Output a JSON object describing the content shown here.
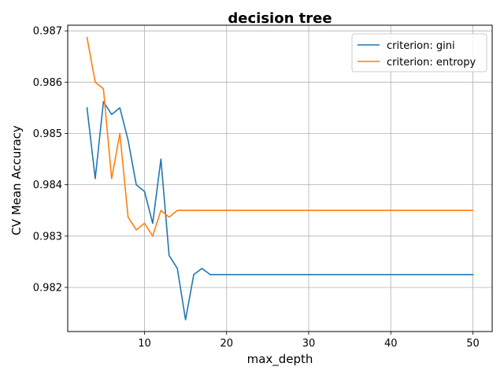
{
  "chart_data": {
    "type": "line",
    "title": "decision tree",
    "xlabel": "max_depth",
    "ylabel": "CV Mean Accuracy",
    "xlim": [
      0.65,
      52.35
    ],
    "ylim": [
      0.98114,
      0.98711
    ],
    "xticks": [
      10,
      20,
      30,
      40,
      50
    ],
    "yticks": [
      0.982,
      0.983,
      0.984,
      0.985,
      0.986,
      0.987
    ],
    "xtick_labels": [
      "10",
      "20",
      "30",
      "40",
      "50"
    ],
    "ytick_labels": [
      "0.982",
      "0.983",
      "0.984",
      "0.985",
      "0.986",
      "0.987"
    ],
    "grid": true,
    "legend_position": "top-right",
    "x": [
      3,
      4,
      5,
      6,
      7,
      8,
      9,
      10,
      11,
      12,
      13,
      14,
      15,
      16,
      17,
      18,
      19,
      20,
      21,
      22,
      23,
      24,
      25,
      26,
      27,
      28,
      29,
      30,
      31,
      32,
      33,
      34,
      35,
      36,
      37,
      38,
      39,
      40,
      41,
      42,
      43,
      44,
      45,
      46,
      47,
      48,
      49,
      50
    ],
    "series": [
      {
        "name": "criterion: gini",
        "color": "#1f77b4",
        "values": [
          0.9855,
          0.98412,
          0.98562,
          0.98537,
          0.9855,
          0.98487,
          0.984,
          0.98387,
          0.98325,
          0.9845,
          0.98262,
          0.98237,
          0.98137,
          0.98225,
          0.98237,
          0.98225,
          0.98225,
          0.98225,
          0.98225,
          0.98225,
          0.98225,
          0.98225,
          0.98225,
          0.98225,
          0.98225,
          0.98225,
          0.98225,
          0.98225,
          0.98225,
          0.98225,
          0.98225,
          0.98225,
          0.98225,
          0.98225,
          0.98225,
          0.98225,
          0.98225,
          0.98225,
          0.98225,
          0.98225,
          0.98225,
          0.98225,
          0.98225,
          0.98225,
          0.98225,
          0.98225,
          0.98225,
          0.98225
        ]
      },
      {
        "name": "criterion: entropy",
        "color": "#ff7f0e",
        "values": [
          0.98687,
          0.986,
          0.98587,
          0.98412,
          0.985,
          0.98337,
          0.98312,
          0.98325,
          0.983,
          0.9835,
          0.98337,
          0.9835,
          0.9835,
          0.9835,
          0.9835,
          0.9835,
          0.9835,
          0.9835,
          0.9835,
          0.9835,
          0.9835,
          0.9835,
          0.9835,
          0.9835,
          0.9835,
          0.9835,
          0.9835,
          0.9835,
          0.9835,
          0.9835,
          0.9835,
          0.9835,
          0.9835,
          0.9835,
          0.9835,
          0.9835,
          0.9835,
          0.9835,
          0.9835,
          0.9835,
          0.9835,
          0.9835,
          0.9835,
          0.9835,
          0.9835,
          0.9835,
          0.9835,
          0.9835
        ]
      }
    ]
  }
}
